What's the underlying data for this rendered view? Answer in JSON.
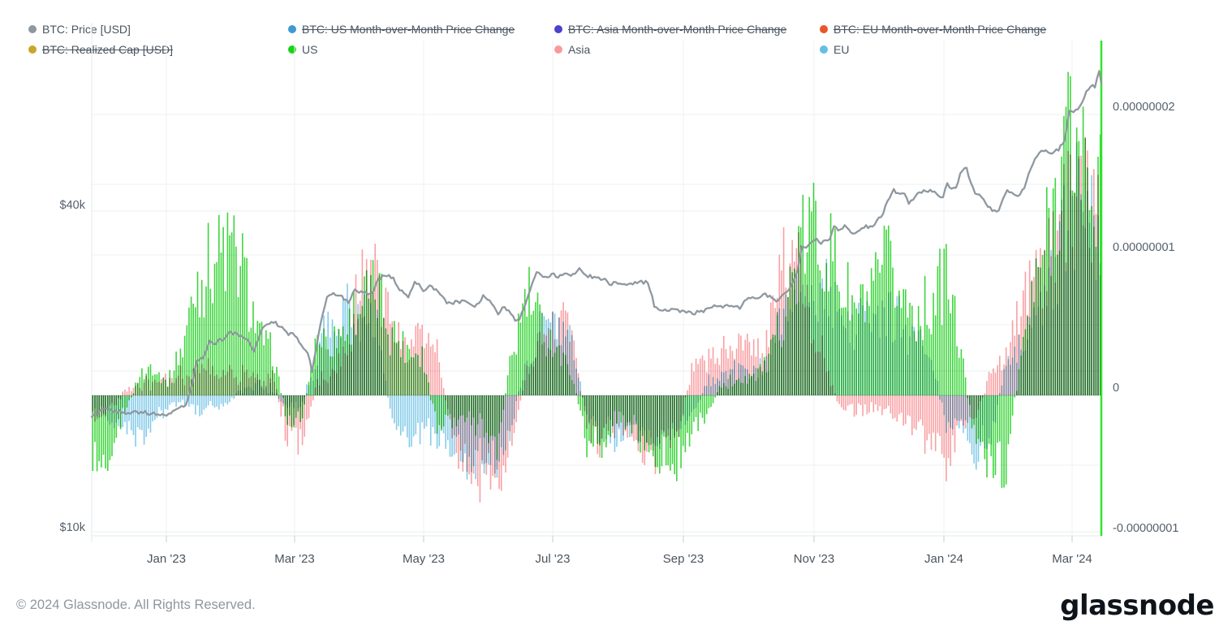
{
  "legend": {
    "items": [
      {
        "label": "BTC: Price [USD]",
        "color": "#8e98a1",
        "struck": false,
        "row": 0,
        "col": 0
      },
      {
        "label": "BTC: US Month-over-Month Price Change",
        "color": "#3d9ad1",
        "struck": true,
        "row": 0,
        "col": 1
      },
      {
        "label": "BTC: Asia Month-over-Month Price Change",
        "color": "#4b42cb",
        "struck": true,
        "row": 0,
        "col": 2
      },
      {
        "label": "BTC: EU Month-over-Month Price Change",
        "color": "#e8562a",
        "struck": true,
        "row": 0,
        "col": 3
      },
      {
        "label": "BTC: Realized Cap [USD]",
        "color": "#c7a62c",
        "struck": true,
        "row": 1,
        "col": 0
      },
      {
        "label": "US",
        "color": "#17d417",
        "struck": false,
        "row": 1,
        "col": 1
      },
      {
        "label": "Asia",
        "color": "#f89a9c",
        "struck": false,
        "row": 1,
        "col": 2
      },
      {
        "label": "EU",
        "color": "#63bfe5",
        "struck": false,
        "row": 1,
        "col": 3
      }
    ]
  },
  "footer": {
    "copyright": "© 2024 Glassnode. All Rights Reserved.",
    "logo": "glassnode"
  },
  "chart_data": {
    "type": "bar",
    "title": "",
    "x_range": [
      "2022-11-28",
      "2024-03-14"
    ],
    "days_total": 472,
    "x_ticks": [
      "Jan '23",
      "Mar '23",
      "May '23",
      "Jul '23",
      "Sep '23",
      "Nov '23",
      "Jan '24",
      "Mar '24"
    ],
    "left_axis": {
      "label": "BTC: Price [USD]",
      "scale": "log",
      "tick_labels": [
        "$40k",
        "$10k"
      ],
      "tick_values": [
        40000,
        10000
      ]
    },
    "right_axis": {
      "label": "Month-over-Month Price Change",
      "tick_labels": [
        "0.00000002",
        "0.00000001",
        "0",
        "-0.00000001"
      ],
      "tick_values": [
        2e-08,
        1e-08,
        0,
        -1e-08
      ]
    },
    "grid": true,
    "legend_position": "top",
    "last_value_marker_color": "#30e42e",
    "price_line": {
      "name": "BTC: Price [USD]",
      "color": "#8b959d",
      "points_day_priceK": [
        [
          0,
          16.5
        ],
        [
          6,
          17.1
        ],
        [
          10,
          16.9
        ],
        [
          16,
          16.7
        ],
        [
          24,
          16.8
        ],
        [
          30,
          16.6
        ],
        [
          35,
          16.6
        ],
        [
          40,
          16.9
        ],
        [
          44,
          17.3
        ],
        [
          47,
          19.0
        ],
        [
          49,
          20.9
        ],
        [
          52,
          21.1
        ],
        [
          55,
          22.7
        ],
        [
          58,
          22.6
        ],
        [
          62,
          23.1
        ],
        [
          64,
          23.7
        ],
        [
          67,
          23.5
        ],
        [
          70,
          23.2
        ],
        [
          73,
          22.9
        ],
        [
          76,
          21.8
        ],
        [
          80,
          24.3
        ],
        [
          85,
          24.8
        ],
        [
          88,
          24.3
        ],
        [
          92,
          23.5
        ],
        [
          95,
          23.4
        ],
        [
          98,
          22.4
        ],
        [
          101,
          21.7
        ],
        [
          103,
          20.1
        ],
        [
          105,
          22.1
        ],
        [
          107,
          24.7
        ],
        [
          110,
          27.4
        ],
        [
          113,
          28.1
        ],
        [
          116,
          27.8
        ],
        [
          120,
          27.0
        ],
        [
          123,
          28.4
        ],
        [
          127,
          28.2
        ],
        [
          131,
          27.9
        ],
        [
          134,
          29.9
        ],
        [
          138,
          30.4
        ],
        [
          141,
          30.0
        ],
        [
          143,
          28.8
        ],
        [
          146,
          28.2
        ],
        [
          148,
          27.5
        ],
        [
          151,
          29.5
        ],
        [
          153,
          29.2
        ],
        [
          155,
          28.1
        ],
        [
          158,
          28.9
        ],
        [
          161,
          28.5
        ],
        [
          164,
          27.6
        ],
        [
          166,
          26.8
        ],
        [
          170,
          27.0
        ],
        [
          175,
          27.1
        ],
        [
          179,
          26.3
        ],
        [
          183,
          27.7
        ],
        [
          186,
          27.2
        ],
        [
          190,
          25.7
        ],
        [
          193,
          26.5
        ],
        [
          195,
          25.9
        ],
        [
          198,
          25.0
        ],
        [
          200,
          25.1
        ],
        [
          203,
          26.8
        ],
        [
          205,
          28.3
        ],
        [
          208,
          30.7
        ],
        [
          211,
          30.1
        ],
        [
          215,
          30.4
        ],
        [
          218,
          30.2
        ],
        [
          221,
          30.5
        ],
        [
          225,
          30.3
        ],
        [
          228,
          31.3
        ],
        [
          231,
          30.3
        ],
        [
          235,
          30.0
        ],
        [
          239,
          29.9
        ],
        [
          242,
          29.2
        ],
        [
          245,
          29.3
        ],
        [
          250,
          29.1
        ],
        [
          253,
          29.2
        ],
        [
          256,
          29.4
        ],
        [
          260,
          29.4
        ],
        [
          263,
          26.6
        ],
        [
          266,
          26.0
        ],
        [
          270,
          26.1
        ],
        [
          274,
          26.0
        ],
        [
          278,
          25.8
        ],
        [
          281,
          25.7
        ],
        [
          285,
          25.9
        ],
        [
          288,
          26.2
        ],
        [
          292,
          26.6
        ],
        [
          296,
          26.5
        ],
        [
          300,
          26.6
        ],
        [
          303,
          26.2
        ],
        [
          305,
          27.0
        ],
        [
          308,
          27.5
        ],
        [
          310,
          27.4
        ],
        [
          313,
          27.6
        ],
        [
          315,
          27.9
        ],
        [
          318,
          27.4
        ],
        [
          320,
          26.9
        ],
        [
          323,
          28.0
        ],
        [
          326,
          28.3
        ],
        [
          328,
          29.7
        ],
        [
          330,
          31.0
        ],
        [
          332,
          34.5
        ],
        [
          334,
          34.2
        ],
        [
          338,
          35.4
        ],
        [
          341,
          34.9
        ],
        [
          345,
          35.6
        ],
        [
          347,
          37.3
        ],
        [
          350,
          36.9
        ],
        [
          352,
          37.8
        ],
        [
          355,
          36.3
        ],
        [
          358,
          36.5
        ],
        [
          361,
          37.4
        ],
        [
          365,
          37.5
        ],
        [
          368,
          38.8
        ],
        [
          370,
          39.5
        ],
        [
          372,
          42.0
        ],
        [
          375,
          43.7
        ],
        [
          377,
          43.3
        ],
        [
          380,
          42.9
        ],
        [
          382,
          41.4
        ],
        [
          385,
          42.7
        ],
        [
          388,
          43.4
        ],
        [
          390,
          43.7
        ],
        [
          393,
          43.6
        ],
        [
          395,
          43.0
        ],
        [
          398,
          42.5
        ],
        [
          400,
          45.0
        ],
        [
          402,
          44.2
        ],
        [
          404,
          44.0
        ],
        [
          406,
          46.9
        ],
        [
          409,
          48.3
        ],
        [
          410,
          46.3
        ],
        [
          413,
          42.9
        ],
        [
          415,
          42.8
        ],
        [
          418,
          41.5
        ],
        [
          421,
          39.9
        ],
        [
          424,
          40.1
        ],
        [
          426,
          42.0
        ],
        [
          428,
          43.5
        ],
        [
          431,
          43.1
        ],
        [
          433,
          42.6
        ],
        [
          436,
          44.3
        ],
        [
          438,
          47.1
        ],
        [
          441,
          49.9
        ],
        [
          444,
          52.0
        ],
        [
          447,
          51.8
        ],
        [
          450,
          51.5
        ],
        [
          452,
          52.3
        ],
        [
          455,
          54.5
        ],
        [
          457,
          62.0
        ],
        [
          459,
          61.4
        ],
        [
          461,
          62.4
        ],
        [
          463,
          63.8
        ],
        [
          465,
          66.9
        ],
        [
          467,
          68.3
        ],
        [
          468,
          69.0
        ],
        [
          469,
          68.3
        ],
        [
          470,
          71.5
        ],
        [
          471,
          73.1
        ],
        [
          472,
          69.4
        ]
      ]
    },
    "mom_series_weekly_e8": {
      "note": "weekly anchors (7 days per value), unit = 1e-8 on right axis",
      "series": [
        {
          "name": "US",
          "color": "#3fd63f",
          "values": [
            -0.45,
            -0.4,
            -0.15,
            0.1,
            0.22,
            0.08,
            0.35,
            0.85,
            1.0,
            1.05,
            0.9,
            0.45,
            0.3,
            -0.2,
            -0.15,
            0.45,
            0.4,
            0.5,
            0.7,
            0.75,
            0.45,
            0.35,
            0.3,
            -0.25,
            -0.2,
            -0.15,
            -0.25,
            -0.35,
            0.3,
            0.73,
            0.5,
            0.35,
            0.15,
            -0.35,
            -0.4,
            -0.15,
            -0.2,
            -0.5,
            -0.5,
            -0.45,
            -0.25,
            -0.15,
            0.1,
            0.1,
            0.15,
            0.2,
            0.55,
            0.95,
            1.25,
            1.1,
            0.8,
            0.6,
            0.7,
            0.95,
            0.7,
            0.6,
            0.65,
            0.9,
            0.3,
            -0.4,
            -0.45,
            -0.55,
            0.3,
            0.8,
            1.3,
            1.9,
            1.75,
            1.5
          ]
        },
        {
          "name": "Asia",
          "color": "#f9a0a4",
          "values": [
            -0.15,
            -0.1,
            0.0,
            0.08,
            0.1,
            0.12,
            0.15,
            0.18,
            0.2,
            0.18,
            0.15,
            0.12,
            0.15,
            -0.3,
            -0.35,
            0.1,
            0.15,
            0.35,
            0.85,
            0.95,
            0.5,
            0.35,
            0.5,
            0.35,
            -0.3,
            -0.5,
            -0.6,
            -0.65,
            -0.35,
            0.2,
            0.45,
            0.55,
            0.5,
            -0.25,
            -0.35,
            -0.2,
            -0.25,
            -0.45,
            -0.4,
            -0.3,
            0.2,
            0.25,
            0.3,
            0.35,
            0.3,
            0.4,
            0.9,
            1.0,
            0.6,
            0.2,
            -0.1,
            -0.12,
            -0.1,
            -0.12,
            -0.15,
            -0.25,
            -0.35,
            -0.45,
            -0.2,
            -0.15,
            0.18,
            0.3,
            0.6,
            0.9,
            1.1,
            1.3,
            1.8,
            1.3
          ]
        },
        {
          "name": "EU",
          "color": "#85cbe9",
          "values": [
            -0.1,
            -0.15,
            -0.2,
            -0.35,
            -0.15,
            -0.1,
            -0.05,
            -0.1,
            -0.1,
            -0.05,
            0.05,
            0.1,
            0.05,
            -0.1,
            -0.05,
            0.3,
            0.55,
            0.65,
            0.55,
            0.5,
            -0.2,
            -0.3,
            -0.25,
            -0.3,
            -0.35,
            -0.45,
            -0.5,
            -0.45,
            -0.2,
            0.3,
            0.5,
            0.45,
            0.35,
            -0.15,
            -0.25,
            -0.3,
            -0.2,
            -0.3,
            -0.35,
            -0.25,
            -0.15,
            0.1,
            0.15,
            0.2,
            0.15,
            0.25,
            0.5,
            0.7,
            0.85,
            0.8,
            0.6,
            0.5,
            0.55,
            0.6,
            0.5,
            0.4,
            0.3,
            -0.25,
            -0.2,
            -0.4,
            -0.3,
            0.25,
            0.35,
            0.5,
            0.8,
            1.2,
            1.55,
            1.2
          ]
        }
      ]
    }
  }
}
